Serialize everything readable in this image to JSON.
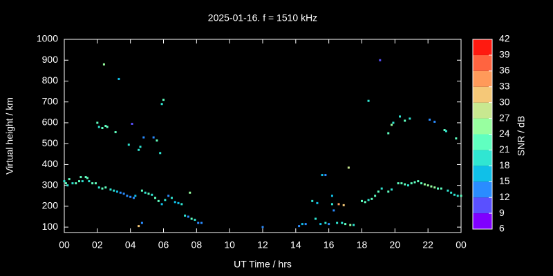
{
  "chart_data": {
    "type": "scatter",
    "title": "2025-01-16. f = 1510 kHz",
    "x_label": "UT Time / hrs",
    "y_label": "Virtual height / km",
    "colorbar_label": "SNR / dB",
    "xlim": [
      0,
      24
    ],
    "xticks": [
      {
        "value": 0,
        "label": "00"
      },
      {
        "value": 2,
        "label": "02"
      },
      {
        "value": 4,
        "label": "04"
      },
      {
        "value": 6,
        "label": "06"
      },
      {
        "value": 8,
        "label": "08"
      },
      10,
      12,
      14,
      16,
      18,
      20,
      22,
      {
        "value": 24,
        "label": "00"
      }
    ],
    "ylim": [
      74,
      1000
    ],
    "yticks": [
      100,
      200,
      300,
      400,
      500,
      600,
      700,
      800,
      900,
      1000
    ],
    "clim": [
      6,
      42
    ],
    "cticks": [
      6,
      9,
      12,
      15,
      18,
      21,
      24,
      27,
      30,
      33,
      36,
      39,
      42
    ],
    "colorscale": [
      "#8000ff",
      "#5a50ff",
      "#2a8cff",
      "#10c0e8",
      "#30e6d2",
      "#60ffc0",
      "#98ffa0",
      "#c8e890",
      "#f5c878",
      "#ff9a5a",
      "#ff6440",
      "#ff1a10"
    ],
    "x": [
      0.0,
      0.1,
      0.2,
      0.3,
      0.5,
      0.7,
      0.9,
      1.0,
      1.1,
      1.3,
      1.4,
      1.5,
      1.7,
      1.9,
      2.1,
      2.3,
      2.5,
      2.8,
      3.0,
      3.2,
      3.4,
      3.6,
      3.8,
      4.0,
      4.2,
      4.3,
      4.7,
      4.9,
      5.1,
      5.3,
      5.5,
      5.7,
      5.9,
      6.1,
      6.3,
      6.5,
      6.7,
      6.9,
      7.1,
      7.3,
      7.5,
      7.7,
      7.9,
      8.1,
      8.3,
      2.0,
      2.1,
      2.3,
      2.5,
      2.6,
      3.1,
      2.4,
      3.3,
      3.9,
      4.1,
      4.5,
      4.6,
      4.8,
      5.4,
      5.6,
      5.8,
      5.9,
      6.0,
      7.6,
      4.5,
      4.7,
      12.0,
      14.2,
      14.4,
      14.6,
      15.0,
      15.3,
      15.2,
      15.6,
      15.8,
      15.5,
      15.8,
      16.0,
      16.2,
      16.2,
      16.3,
      16.5,
      16.6,
      16.8,
      17.0,
      17.2,
      17.5,
      17.3,
      16.9,
      18.0,
      18.2,
      18.4,
      18.6,
      18.8,
      19.0,
      19.2,
      18.4,
      19.1,
      19.6,
      19.8,
      20.2,
      20.4,
      20.6,
      20.8,
      21.0,
      21.2,
      21.4,
      21.6,
      21.8,
      22.0,
      22.2,
      22.4,
      22.6,
      22.8,
      23.2,
      23.4,
      23.6,
      23.8,
      24.0,
      19.6,
      19.8,
      19.9,
      20.3,
      20.6,
      20.9,
      22.1,
      22.4,
      23.0,
      23.1,
      23.7
    ],
    "values": [
      320,
      310,
      300,
      330,
      310,
      310,
      320,
      340,
      320,
      340,
      335,
      320,
      310,
      310,
      290,
      285,
      290,
      280,
      275,
      270,
      265,
      260,
      250,
      245,
      240,
      250,
      275,
      265,
      260,
      255,
      240,
      225,
      210,
      230,
      250,
      240,
      220,
      215,
      210,
      155,
      150,
      140,
      135,
      120,
      120,
      600,
      580,
      575,
      585,
      580,
      555,
      880,
      810,
      495,
      595,
      470,
      485,
      530,
      530,
      515,
      455,
      690,
      710,
      265,
      105,
      120,
      100,
      105,
      115,
      115,
      225,
      215,
      140,
      350,
      350,
      115,
      120,
      115,
      250,
      210,
      180,
      120,
      210,
      120,
      115,
      385,
      110,
      110,
      205,
      225,
      220,
      230,
      235,
      250,
      270,
      285,
      705,
      900,
      270,
      280,
      310,
      310,
      305,
      300,
      310,
      315,
      320,
      310,
      305,
      300,
      295,
      290,
      285,
      285,
      275,
      265,
      255,
      250,
      250,
      550,
      590,
      600,
      630,
      610,
      620,
      615,
      605,
      565,
      560,
      525
    ],
    "snr": [
      20,
      22,
      19,
      21,
      20,
      22,
      21,
      23,
      20,
      22,
      21,
      20,
      22,
      21,
      20,
      22,
      21,
      20,
      19,
      17,
      14,
      13,
      13,
      12,
      14,
      16,
      22,
      20,
      21,
      19,
      22,
      21,
      17,
      20,
      13,
      19,
      16,
      17,
      18,
      20,
      14,
      21,
      19,
      13,
      12,
      22,
      20,
      21,
      23,
      22,
      21,
      25,
      16,
      19,
      11,
      20,
      20,
      12,
      12,
      22,
      19,
      20,
      21,
      24,
      32,
      13,
      12,
      12,
      16,
      13,
      18,
      17,
      20,
      17,
      14,
      16,
      18,
      14,
      16,
      19,
      12,
      19,
      33,
      20,
      22,
      29,
      20,
      24,
      30,
      21,
      22,
      20,
      23,
      22,
      21,
      19,
      19,
      10,
      21,
      19,
      22,
      23,
      21,
      20,
      22,
      21,
      23,
      22,
      24,
      25,
      26,
      24,
      23,
      21,
      20,
      19,
      20,
      18,
      22,
      21,
      24,
      20,
      18,
      22,
      20,
      14,
      12,
      21,
      18,
      23
    ]
  }
}
